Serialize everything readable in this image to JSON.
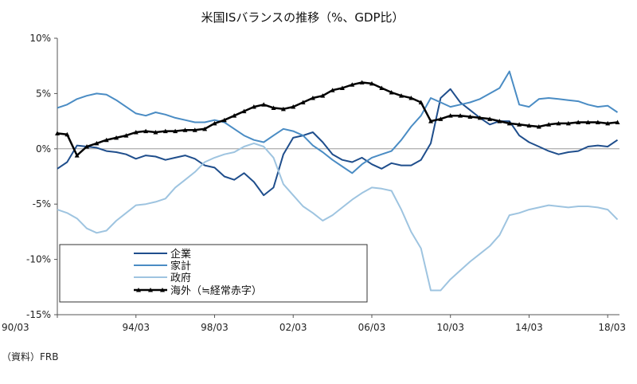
{
  "chart_data": {
    "type": "line",
    "title": "米国ISバランスの推移（%、GDP比）",
    "source": "（資料）FRB",
    "xlabel": "",
    "ylabel": "",
    "ylim": [
      -15,
      10
    ],
    "xlim": [
      1990.0,
      2018.6
    ],
    "y_ticks": [
      10,
      5,
      0,
      -5,
      -10,
      -15
    ],
    "y_tick_labels": [
      "10%",
      "5%",
      "0%",
      "-5%",
      "-10%",
      "-15%"
    ],
    "x_ticks": [
      1990,
      1994,
      1998,
      2002,
      2006,
      2010,
      2014,
      2018
    ],
    "x_tick_labels": [
      "90/03",
      "94/03",
      "98/03",
      "02/03",
      "06/03",
      "10/03",
      "14/03",
      "18/03"
    ],
    "grid": false,
    "legend_position": "lower-left",
    "series": [
      {
        "name": "企業",
        "color": "#1f4e8c",
        "marker": "none",
        "x": [
          1990.0,
          1990.5,
          1991.0,
          1991.5,
          1992.0,
          1992.5,
          1993.0,
          1993.5,
          1994.0,
          1994.5,
          1995.0,
          1995.5,
          1996.0,
          1996.5,
          1997.0,
          1997.5,
          1998.0,
          1998.5,
          1999.0,
          1999.5,
          2000.0,
          2000.5,
          2001.0,
          2001.5,
          2002.0,
          2002.5,
          2003.0,
          2003.5,
          2004.0,
          2004.5,
          2005.0,
          2005.5,
          2006.0,
          2006.5,
          2007.0,
          2007.5,
          2008.0,
          2008.5,
          2009.0,
          2009.5,
          2010.0,
          2010.5,
          2011.0,
          2011.5,
          2012.0,
          2012.5,
          2013.0,
          2013.5,
          2014.0,
          2014.5,
          2015.0,
          2015.5,
          2016.0,
          2016.5,
          2017.0,
          2017.5,
          2018.0,
          2018.5
        ],
        "values": [
          -1.8,
          -1.2,
          0.3,
          0.2,
          0.1,
          -0.2,
          -0.3,
          -0.5,
          -0.9,
          -0.6,
          -0.7,
          -1.0,
          -0.8,
          -0.6,
          -0.9,
          -1.5,
          -1.7,
          -2.5,
          -2.8,
          -2.2,
          -3.0,
          -4.2,
          -3.5,
          -0.5,
          1.0,
          1.2,
          1.5,
          0.6,
          -0.5,
          -1.0,
          -1.2,
          -0.8,
          -1.4,
          -1.8,
          -1.3,
          -1.5,
          -1.5,
          -1.0,
          0.5,
          4.6,
          5.4,
          4.2,
          3.5,
          2.8,
          2.2,
          2.5,
          2.5,
          1.2,
          0.6,
          0.2,
          -0.2,
          -0.5,
          -0.3,
          -0.2,
          0.2,
          0.3,
          0.2,
          0.8
        ]
      },
      {
        "name": "家計",
        "color": "#4a8cc4",
        "marker": "none",
        "x": [
          1990.0,
          1990.5,
          1991.0,
          1991.5,
          1992.0,
          1992.5,
          1993.0,
          1993.5,
          1994.0,
          1994.5,
          1995.0,
          1995.5,
          1996.0,
          1996.5,
          1997.0,
          1997.5,
          1998.0,
          1998.5,
          1999.0,
          1999.5,
          2000.0,
          2000.5,
          2001.0,
          2001.5,
          2002.0,
          2002.5,
          2003.0,
          2003.5,
          2004.0,
          2004.5,
          2005.0,
          2005.5,
          2006.0,
          2006.5,
          2007.0,
          2007.5,
          2008.0,
          2008.5,
          2009.0,
          2009.5,
          2010.0,
          2010.5,
          2011.0,
          2011.5,
          2012.0,
          2012.5,
          2013.0,
          2013.5,
          2014.0,
          2014.5,
          2015.0,
          2015.5,
          2016.0,
          2016.5,
          2017.0,
          2017.5,
          2018.0,
          2018.5
        ],
        "values": [
          3.7,
          4.0,
          4.5,
          4.8,
          5.0,
          4.9,
          4.4,
          3.8,
          3.2,
          3.0,
          3.3,
          3.1,
          2.8,
          2.6,
          2.4,
          2.4,
          2.6,
          2.4,
          1.8,
          1.2,
          0.8,
          0.6,
          1.2,
          1.8,
          1.6,
          1.2,
          0.3,
          -0.3,
          -1.0,
          -1.6,
          -2.2,
          -1.4,
          -0.8,
          -0.5,
          -0.2,
          0.8,
          2.0,
          3.0,
          4.6,
          4.2,
          3.8,
          4.0,
          4.2,
          4.5,
          5.0,
          5.5,
          7.0,
          4.0,
          3.8,
          4.5,
          4.6,
          4.5,
          4.4,
          4.3,
          4.0,
          3.8,
          3.9,
          3.3
        ]
      },
      {
        "name": "政府",
        "color": "#9ec4e0",
        "marker": "none",
        "x": [
          1990.0,
          1990.5,
          1991.0,
          1991.5,
          1992.0,
          1992.5,
          1993.0,
          1993.5,
          1994.0,
          1994.5,
          1995.0,
          1995.5,
          1996.0,
          1996.5,
          1997.0,
          1997.5,
          1998.0,
          1998.5,
          1999.0,
          1999.5,
          2000.0,
          2000.5,
          2001.0,
          2001.5,
          2002.0,
          2002.5,
          2003.0,
          2003.5,
          2004.0,
          2004.5,
          2005.0,
          2005.5,
          2006.0,
          2006.5,
          2007.0,
          2007.5,
          2008.0,
          2008.5,
          2009.0,
          2009.5,
          2010.0,
          2010.5,
          2011.0,
          2011.5,
          2012.0,
          2012.5,
          2013.0,
          2013.5,
          2014.0,
          2014.5,
          2015.0,
          2015.5,
          2016.0,
          2016.5,
          2017.0,
          2017.5,
          2018.0,
          2018.5
        ],
        "values": [
          -5.5,
          -5.8,
          -6.3,
          -7.2,
          -7.6,
          -7.4,
          -6.5,
          -5.8,
          -5.1,
          -5.0,
          -4.8,
          -4.5,
          -3.5,
          -2.8,
          -2.1,
          -1.2,
          -0.8,
          -0.5,
          -0.3,
          0.2,
          0.5,
          0.2,
          -0.8,
          -3.2,
          -4.2,
          -5.2,
          -5.8,
          -6.5,
          -6.0,
          -5.3,
          -4.6,
          -4.0,
          -3.5,
          -3.6,
          -3.8,
          -5.5,
          -7.5,
          -9.0,
          -12.8,
          -12.8,
          -11.8,
          -11.0,
          -10.2,
          -9.5,
          -8.8,
          -7.8,
          -6.0,
          -5.8,
          -5.5,
          -5.3,
          -5.1,
          -5.2,
          -5.3,
          -5.2,
          -5.2,
          -5.3,
          -5.5,
          -6.4
        ]
      },
      {
        "name": "海外（≒経常赤字）",
        "color": "#000000",
        "marker": "triangle",
        "x": [
          1990.0,
          1990.5,
          1991.0,
          1991.5,
          1992.0,
          1992.5,
          1993.0,
          1993.5,
          1994.0,
          1994.5,
          1995.0,
          1995.5,
          1996.0,
          1996.5,
          1997.0,
          1997.5,
          1998.0,
          1998.5,
          1999.0,
          1999.5,
          2000.0,
          2000.5,
          2001.0,
          2001.5,
          2002.0,
          2002.5,
          2003.0,
          2003.5,
          2004.0,
          2004.5,
          2005.0,
          2005.5,
          2006.0,
          2006.5,
          2007.0,
          2007.5,
          2008.0,
          2008.5,
          2009.0,
          2009.5,
          2010.0,
          2010.5,
          2011.0,
          2011.5,
          2012.0,
          2012.5,
          2013.0,
          2013.5,
          2014.0,
          2014.5,
          2015.0,
          2015.5,
          2016.0,
          2016.5,
          2017.0,
          2017.5,
          2018.0,
          2018.5
        ],
        "values": [
          1.4,
          1.3,
          -0.6,
          0.2,
          0.5,
          0.8,
          1.0,
          1.2,
          1.5,
          1.6,
          1.5,
          1.6,
          1.6,
          1.7,
          1.7,
          1.8,
          2.3,
          2.6,
          3.0,
          3.4,
          3.8,
          4.0,
          3.7,
          3.6,
          3.8,
          4.2,
          4.6,
          4.8,
          5.3,
          5.5,
          5.8,
          6.0,
          5.9,
          5.5,
          5.1,
          4.8,
          4.6,
          4.2,
          2.5,
          2.7,
          3.0,
          3.0,
          2.9,
          2.8,
          2.7,
          2.5,
          2.3,
          2.2,
          2.1,
          2.0,
          2.2,
          2.3,
          2.3,
          2.4,
          2.4,
          2.4,
          2.3,
          2.4
        ]
      }
    ]
  }
}
